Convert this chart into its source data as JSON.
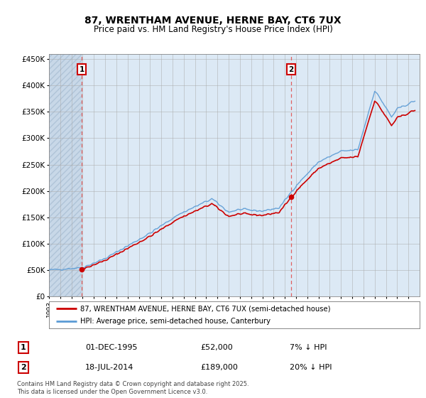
{
  "title_line1": "87, WRENTHAM AVENUE, HERNE BAY, CT6 7UX",
  "title_line2": "Price paid vs. HM Land Registry's House Price Index (HPI)",
  "ylim": [
    0,
    460000
  ],
  "yticks": [
    0,
    50000,
    100000,
    150000,
    200000,
    250000,
    300000,
    350000,
    400000,
    450000
  ],
  "ytick_labels": [
    "£0",
    "£50K",
    "£100K",
    "£150K",
    "£200K",
    "£250K",
    "£300K",
    "£350K",
    "£400K",
    "£450K"
  ],
  "hpi_color": "#5b9bd5",
  "price_color": "#cc0000",
  "sale1_date": 1995.92,
  "sale1_price": 52000,
  "sale2_date": 2014.55,
  "sale2_price": 189000,
  "sale1_label": "1",
  "sale2_label": "2",
  "legend_line1": "87, WRENTHAM AVENUE, HERNE BAY, CT6 7UX (semi-detached house)",
  "legend_line2": "HPI: Average price, semi-detached house, Canterbury",
  "info1_num": "1",
  "info1_date": "01-DEC-1995",
  "info1_price": "£52,000",
  "info1_hpi": "7% ↓ HPI",
  "info2_num": "2",
  "info2_date": "18-JUL-2014",
  "info2_price": "£189,000",
  "info2_hpi": "20% ↓ HPI",
  "footnote": "Contains HM Land Registry data © Crown copyright and database right 2025.\nThis data is licensed under the Open Government Licence v3.0.",
  "chart_bg_color": "#dce9f5",
  "grid_color": "#aaaaaa",
  "dashed_vline_color": "#e06060",
  "label_box_color": "#cc0000",
  "hatch_region_color": "#c8d8e8"
}
